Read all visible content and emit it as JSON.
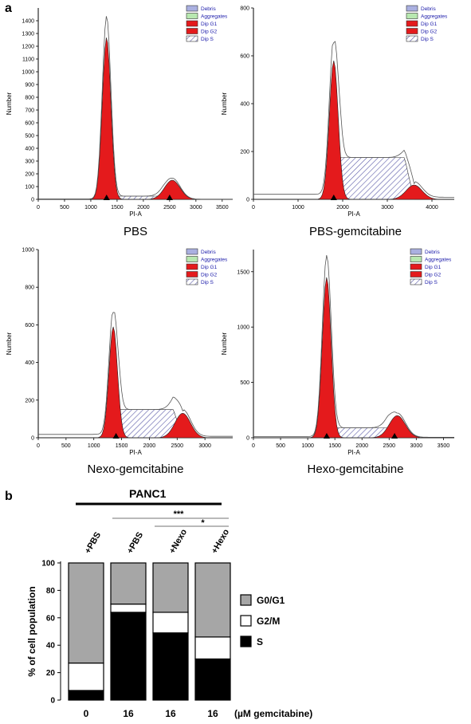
{
  "panel_a_label": "a",
  "panel_b_label": "b",
  "legend_items": [
    "Debris",
    "Aggregates",
    "Dip G1",
    "Dip G2",
    "Dip S"
  ],
  "colors": {
    "g1": "#e41a1c",
    "g2": "#e41a1c",
    "s_hatch": "#5a5aa8",
    "debris": "#aab0e0",
    "aggregates": "#b8e8b0",
    "bar_g0g1": "#a6a6a6",
    "bar_g2m": "#ffffff",
    "bar_s": "#000000"
  },
  "chart_data": [
    {
      "type": "histogram",
      "title": "PBS",
      "xlabel": "PI-A",
      "ylabel": "Number",
      "xlim": [
        0,
        3700
      ],
      "ylim": [
        0,
        1500
      ],
      "xticks": [
        0,
        500,
        1000,
        1500,
        2000,
        2500,
        3000,
        3500
      ],
      "yticks": [
        0,
        100,
        200,
        300,
        400,
        500,
        600,
        700,
        800,
        900,
        1000,
        1100,
        1200,
        1300,
        1400
      ],
      "g1": {
        "peak_x": 1300,
        "height": 1270
      },
      "g2": {
        "peak_x": 2550,
        "height": 150
      },
      "s_phase_level": 25,
      "markers_x": [
        1300,
        2500
      ]
    },
    {
      "type": "histogram",
      "title": "PBS-gemcitabine",
      "xlabel": "PI-A",
      "ylabel": "Number",
      "xlim": [
        0,
        4500
      ],
      "ylim": [
        0,
        800
      ],
      "xticks": [
        0,
        1000,
        2000,
        3000,
        4000
      ],
      "yticks": [
        0,
        200,
        400,
        600,
        800
      ],
      "g1": {
        "peak_x": 1800,
        "height": 580
      },
      "g2": {
        "peak_x": 3600,
        "height": 60
      },
      "s_phase_level": 175,
      "markers_x": [
        1800
      ]
    },
    {
      "type": "histogram",
      "title": "Nexo-gemcitabine",
      "xlabel": "PI-A",
      "ylabel": "Number",
      "xlim": [
        0,
        3500
      ],
      "ylim": [
        0,
        1000
      ],
      "xticks": [
        0,
        500,
        1000,
        1500,
        2000,
        2500,
        3000
      ],
      "yticks": [
        0,
        200,
        400,
        600,
        800,
        1000
      ],
      "g1": {
        "peak_x": 1350,
        "height": 590
      },
      "g2": {
        "peak_x": 2600,
        "height": 130
      },
      "s_phase_level": 150,
      "markers_x": [
        1400
      ]
    },
    {
      "type": "histogram",
      "title": "Hexo-gemcitabine",
      "xlabel": "PI-A",
      "ylabel": "Number",
      "xlim": [
        0,
        3700
      ],
      "ylim": [
        0,
        1700
      ],
      "xticks": [
        0,
        500,
        1000,
        1500,
        2000,
        2500,
        3000,
        3500
      ],
      "yticks": [
        0,
        500,
        1000,
        1500
      ],
      "g1": {
        "peak_x": 1350,
        "height": 1450
      },
      "g2": {
        "peak_x": 2650,
        "height": 200
      },
      "s_phase_level": 90,
      "markers_x": [
        1350,
        2600
      ]
    },
    {
      "type": "bar",
      "stacked": true,
      "title": "PANC1",
      "categories": [
        "+PBS",
        "+PBS",
        "+Nexo",
        "+Hexo"
      ],
      "x_values": [
        "0",
        "16",
        "16",
        "16"
      ],
      "x_unit_label": "(µM gemcitabine)",
      "ylabel": "% of cell population",
      "ylim": [
        0,
        100
      ],
      "yticks": [
        0,
        20,
        40,
        60,
        80,
        100
      ],
      "series": [
        {
          "name": "S",
          "values": [
            7,
            64,
            49,
            30
          ]
        },
        {
          "name": "G2/M",
          "values": [
            20,
            6,
            15,
            16
          ]
        },
        {
          "name": "G0/G1",
          "values": [
            73,
            30,
            36,
            54
          ]
        }
      ],
      "legend_order": [
        "G0/G1",
        "G2/M",
        "S"
      ],
      "significance": [
        "***",
        "*"
      ]
    }
  ]
}
